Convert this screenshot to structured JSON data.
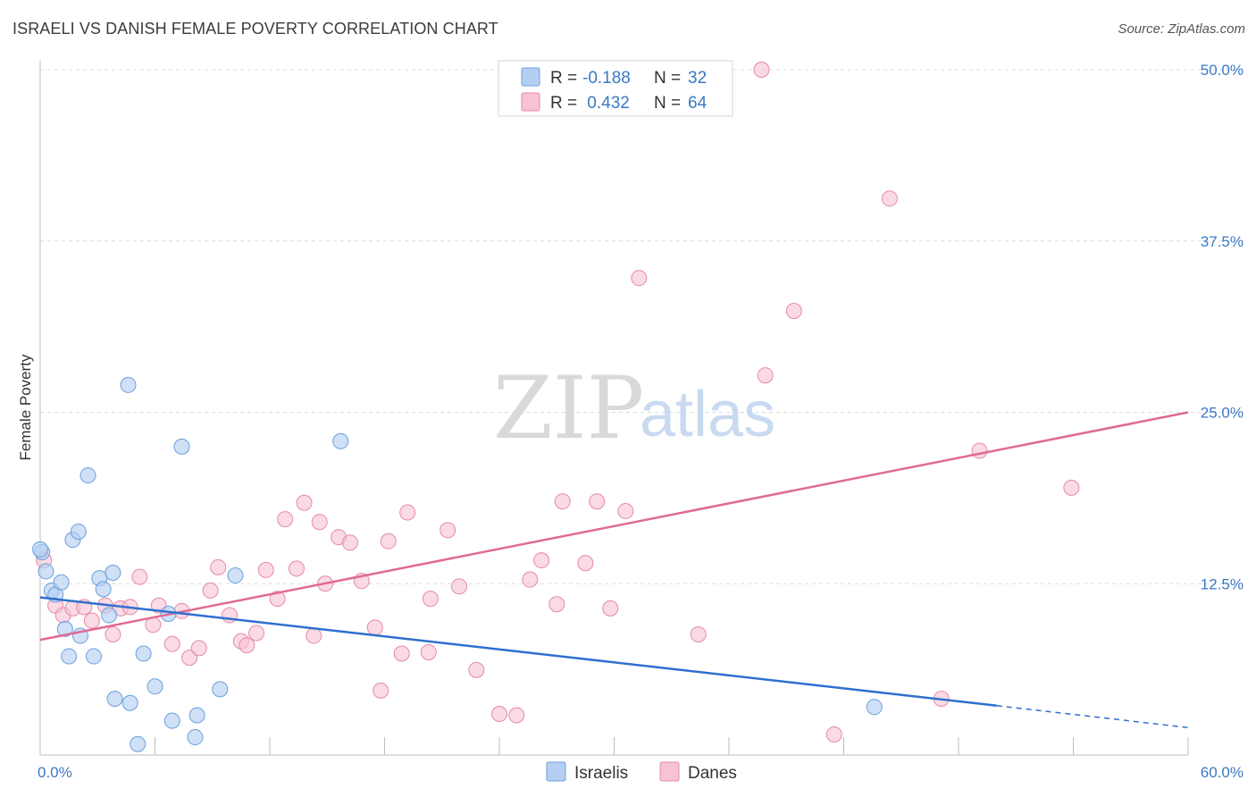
{
  "title": "ISRAELI VS DANISH FEMALE POVERTY CORRELATION CHART",
  "source": "Source: ZipAtlas.com",
  "watermark": {
    "zip": "ZIP",
    "atlas": "atlas"
  },
  "colors": {
    "israelis_fill": "#b5cff2",
    "israelis_stroke": "#6b9fdc",
    "israelis_line": "#2f6fd0",
    "danes_fill": "#f7c2d2",
    "danes_stroke": "#e58aa8",
    "danes_line": "#e06a92",
    "tick_label": "#3b78c4",
    "grid": "#dcdcdc"
  },
  "legend": {
    "rows": [
      {
        "r_label": "R = ",
        "r_value": "-0.188",
        "n_label": "N = ",
        "n_value": "32"
      },
      {
        "r_label": "R = ",
        "r_value": " 0.432",
        "n_label": "N = ",
        "n_value": "64"
      }
    ]
  },
  "bottom_legend": [
    "Israelis",
    "Danes"
  ],
  "chart_data": {
    "type": "scatter",
    "xlabel": "",
    "ylabel": "Female Poverty",
    "xlim": [
      0,
      60
    ],
    "ylim": [
      0,
      50
    ],
    "x_tick_labels": [
      "0.0%",
      "60.0%"
    ],
    "y_ticks": [
      12.5,
      25.0,
      37.5,
      50.0
    ],
    "y_tick_labels": [
      "12.5%",
      "25.0%",
      "37.5%",
      "50.0%"
    ],
    "legend_position": "top-center",
    "grid": true,
    "series": [
      {
        "name": "Israelis",
        "R": -0.188,
        "N": 32,
        "trend": {
          "x_start": 0,
          "y_start": 11.5,
          "x_solid_end": 50,
          "y_solid_end": 3.6,
          "x_end": 60,
          "y_end": 2.0
        },
        "points": [
          [
            0.1,
            14.8
          ],
          [
            0.3,
            13.4
          ],
          [
            0.6,
            12.0
          ],
          [
            0.8,
            11.7
          ],
          [
            1.1,
            12.6
          ],
          [
            1.3,
            9.2
          ],
          [
            1.5,
            7.2
          ],
          [
            1.7,
            15.7
          ],
          [
            2.0,
            16.3
          ],
          [
            2.1,
            8.7
          ],
          [
            2.5,
            20.4
          ],
          [
            2.8,
            7.2
          ],
          [
            3.1,
            12.9
          ],
          [
            3.3,
            12.1
          ],
          [
            3.6,
            10.2
          ],
          [
            3.8,
            13.3
          ],
          [
            3.9,
            4.1
          ],
          [
            4.6,
            27.0
          ],
          [
            4.7,
            3.8
          ],
          [
            5.1,
            0.8
          ],
          [
            5.4,
            7.4
          ],
          [
            6.0,
            5.0
          ],
          [
            6.7,
            10.3
          ],
          [
            6.9,
            2.5
          ],
          [
            7.4,
            22.5
          ],
          [
            8.1,
            1.3
          ],
          [
            8.2,
            2.9
          ],
          [
            9.4,
            4.8
          ],
          [
            10.2,
            13.1
          ],
          [
            15.7,
            22.9
          ],
          [
            43.6,
            3.5
          ],
          [
            0.0,
            15.0
          ]
        ]
      },
      {
        "name": "Danes",
        "R": 0.432,
        "N": 64,
        "trend": {
          "x_start": 0,
          "y_start": 8.4,
          "x_end": 60,
          "y_end": 25.0
        },
        "points": [
          [
            0.2,
            14.2
          ],
          [
            0.8,
            10.9
          ],
          [
            1.2,
            10.2
          ],
          [
            1.7,
            10.7
          ],
          [
            2.3,
            10.8
          ],
          [
            2.7,
            9.8
          ],
          [
            3.4,
            10.9
          ],
          [
            3.8,
            8.8
          ],
          [
            4.2,
            10.7
          ],
          [
            4.7,
            10.8
          ],
          [
            5.2,
            13.0
          ],
          [
            5.9,
            9.5
          ],
          [
            6.2,
            10.9
          ],
          [
            6.9,
            8.1
          ],
          [
            7.4,
            10.5
          ],
          [
            7.8,
            7.1
          ],
          [
            8.3,
            7.8
          ],
          [
            8.9,
            12.0
          ],
          [
            9.3,
            13.7
          ],
          [
            9.9,
            10.2
          ],
          [
            10.5,
            8.3
          ],
          [
            10.8,
            8.0
          ],
          [
            11.3,
            8.9
          ],
          [
            11.8,
            13.5
          ],
          [
            12.4,
            11.4
          ],
          [
            12.8,
            17.2
          ],
          [
            13.4,
            13.6
          ],
          [
            13.8,
            18.4
          ],
          [
            14.3,
            8.7
          ],
          [
            14.6,
            17.0
          ],
          [
            14.9,
            12.5
          ],
          [
            15.6,
            15.9
          ],
          [
            16.2,
            15.5
          ],
          [
            16.8,
            12.7
          ],
          [
            17.5,
            9.3
          ],
          [
            17.8,
            4.7
          ],
          [
            18.2,
            15.6
          ],
          [
            18.9,
            7.4
          ],
          [
            19.2,
            17.7
          ],
          [
            20.3,
            7.5
          ],
          [
            20.4,
            11.4
          ],
          [
            21.3,
            16.4
          ],
          [
            21.9,
            12.3
          ],
          [
            22.8,
            6.2
          ],
          [
            24.0,
            3.0
          ],
          [
            24.9,
            2.9
          ],
          [
            25.6,
            12.8
          ],
          [
            26.2,
            14.2
          ],
          [
            27.0,
            11.0
          ],
          [
            27.3,
            18.5
          ],
          [
            28.5,
            14.0
          ],
          [
            29.1,
            18.5
          ],
          [
            29.8,
            10.7
          ],
          [
            30.6,
            17.8
          ],
          [
            31.3,
            34.8
          ],
          [
            34.4,
            8.8
          ],
          [
            37.7,
            50.0
          ],
          [
            37.9,
            27.7
          ],
          [
            39.4,
            32.4
          ],
          [
            41.5,
            1.5
          ],
          [
            44.4,
            40.6
          ],
          [
            47.1,
            4.1
          ],
          [
            49.1,
            22.2
          ],
          [
            53.9,
            19.5
          ]
        ]
      }
    ]
  }
}
